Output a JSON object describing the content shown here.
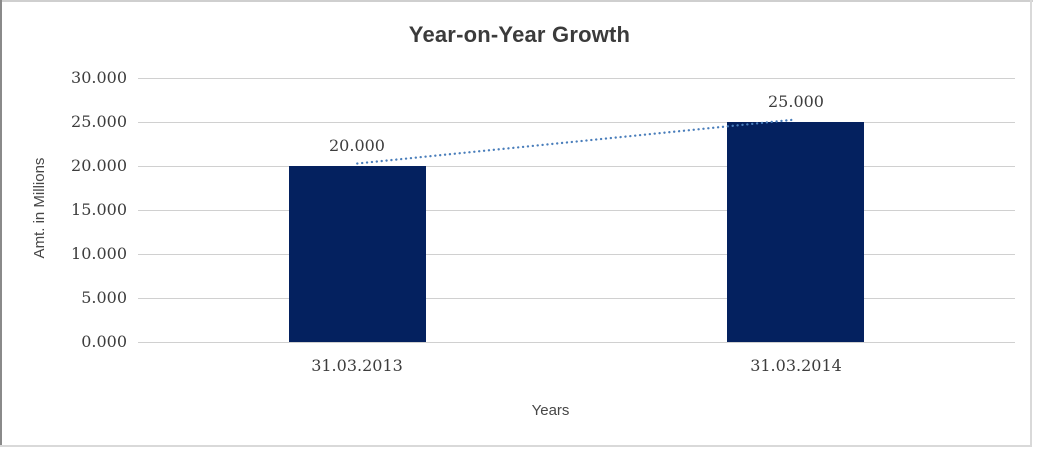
{
  "chart_data": {
    "type": "bar",
    "title": "Year-on-Year Growth",
    "xlabel": "Years",
    "ylabel": "Amt. in Millions",
    "categories": [
      "31.03.2013",
      "31.03.2014"
    ],
    "values": [
      20.0,
      25.0
    ],
    "data_labels": [
      "20.000",
      "25.000"
    ],
    "yticks": [
      {
        "value": 0,
        "label": "0.000"
      },
      {
        "value": 5,
        "label": "5.000"
      },
      {
        "value": 10,
        "label": "10.000"
      },
      {
        "value": 15,
        "label": "15.000"
      },
      {
        "value": 20,
        "label": "20.000"
      },
      {
        "value": 25,
        "label": "25.000"
      },
      {
        "value": 30,
        "label": "30.000"
      }
    ],
    "ylim": [
      0,
      30
    ],
    "grid": "horizontal-only",
    "legend": "none",
    "trendline": {
      "style": "dotted",
      "from_value": 20.0,
      "to_value": 25.0
    },
    "colors": {
      "bar": "#04215F",
      "trendline": "#4A7EBB",
      "gridline": "#D0D0D0",
      "title_text": "#3B3B3B",
      "tick_label_text": "#3D3D3D",
      "axis_title_text": "#474747"
    }
  }
}
